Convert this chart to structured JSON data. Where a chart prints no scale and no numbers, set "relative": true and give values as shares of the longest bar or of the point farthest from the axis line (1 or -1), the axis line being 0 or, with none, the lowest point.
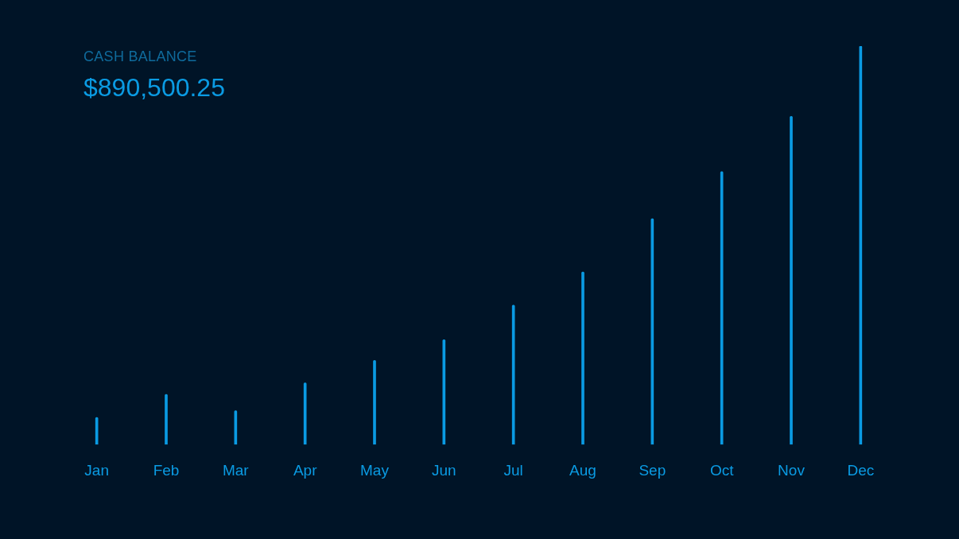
{
  "chart_data": {
    "type": "bar",
    "title": "CASH BALANCE",
    "subtitle": "$890,500.25",
    "relative": true,
    "categories": [
      "Jan",
      "Feb",
      "Mar",
      "Apr",
      "May",
      "Jun",
      "Jul",
      "Aug",
      "Sep",
      "Oct",
      "Nov",
      "Dec"
    ],
    "values": [
      0.068,
      0.126,
      0.085,
      0.155,
      0.211,
      0.263,
      0.35,
      0.433,
      0.567,
      0.685,
      0.824,
      1
    ],
    "color": "#0a9be3",
    "grid": false,
    "legend": false
  }
}
